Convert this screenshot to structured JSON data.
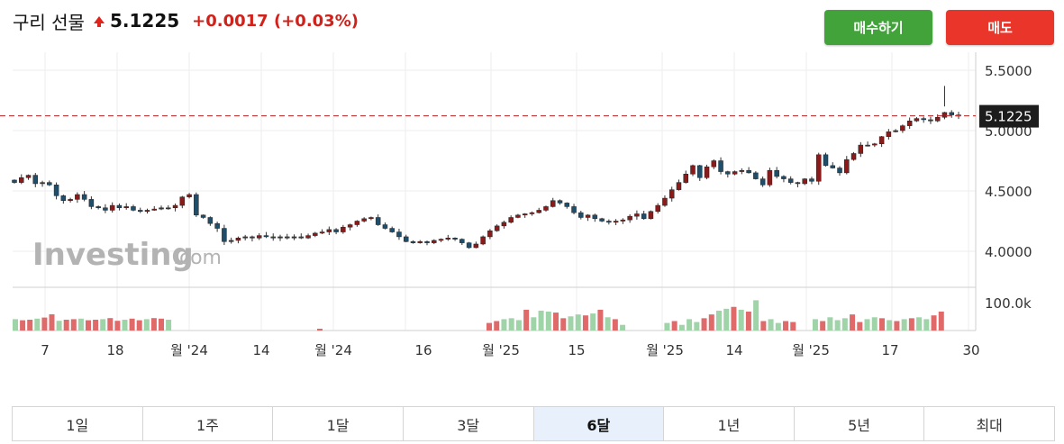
{
  "header": {
    "title": "구리 선물",
    "price": "5.1225",
    "change": "+0.0017",
    "change_pct": "(+0.03%)"
  },
  "buttons": {
    "buy": "매수하기",
    "sell": "매도"
  },
  "colors": {
    "up": "#8b1a1a",
    "down": "#1f4e6b",
    "buy": "#41a33a",
    "sell": "#e9352a",
    "vol_up": "#e06a6a",
    "vol_down": "#9fd3a8",
    "price_line": "#c0393b"
  },
  "watermark": {
    "brand": "Investing",
    "suffix": ".com"
  },
  "tabs": [
    "1일",
    "1주",
    "1달",
    "3달",
    "6달",
    "1년",
    "5년",
    "최대"
  ],
  "active_tab": "6달",
  "chart_data": {
    "type": "candlestick",
    "y_axis": {
      "range": [
        3.95,
        5.55
      ],
      "ticks": [
        "5.5000",
        "5.0000",
        "4.5000",
        "4.0000"
      ],
      "tick_values": [
        5.5,
        5.0,
        4.5,
        4.0
      ]
    },
    "current_price_label": "5.1225",
    "current_price": 5.1225,
    "volume_axis_label": "100.0k",
    "x_labels": [
      "7",
      "18",
      "월 '24",
      "14",
      "월 '24",
      "16",
      "월 '25",
      "15",
      "월 '25",
      "14",
      "월 '25",
      "17",
      "30"
    ],
    "closes": [
      4.57,
      4.61,
      4.63,
      4.56,
      4.57,
      4.55,
      4.46,
      4.42,
      4.43,
      4.47,
      4.43,
      4.37,
      4.36,
      4.34,
      4.38,
      4.36,
      4.37,
      4.34,
      4.33,
      4.34,
      4.35,
      4.36,
      4.36,
      4.38,
      4.45,
      4.47,
      4.3,
      4.28,
      4.23,
      4.19,
      4.08,
      4.09,
      4.11,
      4.12,
      4.11,
      4.13,
      4.12,
      4.11,
      4.12,
      4.11,
      4.12,
      4.11,
      4.13,
      4.15,
      4.16,
      4.18,
      4.16,
      4.2,
      4.22,
      4.25,
      4.27,
      4.28,
      4.22,
      4.19,
      4.16,
      4.12,
      4.08,
      4.07,
      4.08,
      4.07,
      4.09,
      4.1,
      4.11,
      4.1,
      4.07,
      4.03,
      4.06,
      4.12,
      4.17,
      4.21,
      4.24,
      4.28,
      4.3,
      4.31,
      4.32,
      4.34,
      4.37,
      4.42,
      4.4,
      4.37,
      4.32,
      4.28,
      4.3,
      4.27,
      4.25,
      4.24,
      4.25,
      4.26,
      4.29,
      4.31,
      4.27,
      4.33,
      4.38,
      4.44,
      4.51,
      4.57,
      4.64,
      4.71,
      4.61,
      4.7,
      4.75,
      4.66,
      4.64,
      4.66,
      4.67,
      4.65,
      4.6,
      4.55,
      4.67,
      4.62,
      4.6,
      4.57,
      4.56,
      4.6,
      4.58,
      4.8,
      4.71,
      4.69,
      4.65,
      4.76,
      4.81,
      4.88,
      4.88,
      4.89,
      4.95,
      4.99,
      5.0,
      5.04,
      5.08,
      5.1,
      5.09,
      5.08,
      5.11,
      5.15,
      5.13,
      5.12
    ],
    "volume": [
      21,
      19,
      20,
      22,
      24,
      30,
      18,
      20,
      21,
      22,
      19,
      20,
      21,
      23,
      18,
      20,
      22,
      19,
      21,
      23,
      22,
      20,
      0,
      0,
      0,
      0,
      0,
      0,
      0,
      0,
      0,
      0,
      0,
      0,
      0,
      0,
      0,
      0,
      0,
      0,
      0,
      0,
      0,
      0,
      0,
      0,
      0,
      0,
      0,
      0,
      0,
      0,
      0,
      0,
      0,
      0,
      0,
      0,
      0,
      0,
      0,
      0,
      0,
      0,
      0,
      0,
      0,
      0,
      0,
      0,
      0,
      0,
      0,
      0,
      0,
      0,
      0,
      0,
      0,
      0,
      0,
      0,
      0,
      0,
      0,
      0,
      0,
      0,
      0,
      0,
      0,
      0,
      0,
      0,
      0,
      0,
      0,
      0,
      0,
      0,
      0,
      0,
      0,
      0,
      0,
      0,
      0,
      0,
      0,
      0,
      0,
      0,
      0,
      0,
      0,
      0,
      0,
      0,
      0,
      0,
      0,
      0,
      0,
      0,
      0,
      0,
      0,
      0,
      0,
      0,
      0,
      0,
      0,
      0,
      0,
      0
    ]
  }
}
